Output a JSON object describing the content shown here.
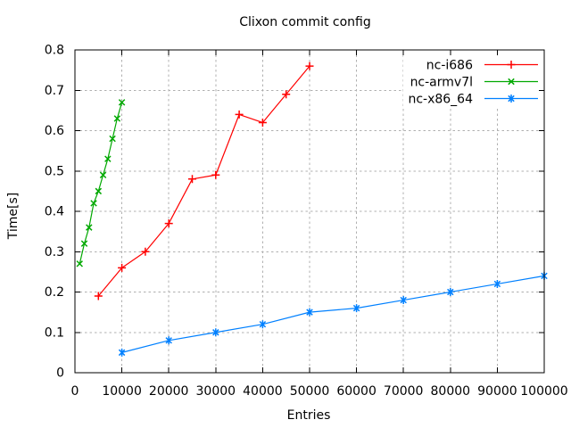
{
  "window": {
    "background": "#ffffff"
  },
  "style": {
    "grid_color": "#b0b0b0",
    "axis_color": "#000000",
    "text_color": "#000000",
    "plot_background": "#ffffff"
  },
  "chart_data": {
    "type": "line",
    "title": "Clixon commit config",
    "xlabel": "Entries",
    "ylabel": "Time[s]",
    "xlim": [
      0,
      100000
    ],
    "ylim": [
      0,
      0.8
    ],
    "grid": true,
    "legend_position": "top-right-inside",
    "x_ticks": {
      "values": [
        0,
        10000,
        20000,
        30000,
        40000,
        50000,
        60000,
        70000,
        80000,
        90000,
        100000
      ],
      "labels": [
        "0",
        "10000",
        "20000",
        "30000",
        "40000",
        "50000",
        "60000",
        "70000",
        "80000",
        "90000",
        "100000"
      ]
    },
    "y_ticks": {
      "values": [
        0,
        0.1,
        0.2,
        0.3,
        0.4,
        0.5,
        0.6,
        0.7,
        0.8
      ],
      "labels": [
        "0",
        "0.1",
        "0.2",
        "0.3",
        "0.4",
        "0.5",
        "0.6",
        "0.7",
        "0.8"
      ]
    },
    "series": [
      {
        "name": "nc-i686",
        "color": "#ff0000",
        "marker": "plus",
        "x": [
          5000,
          10000,
          15000,
          20000,
          25000,
          30000,
          35000,
          40000,
          45000,
          50000
        ],
        "y": [
          0.19,
          0.26,
          0.3,
          0.37,
          0.48,
          0.49,
          0.64,
          0.62,
          0.69,
          0.76
        ]
      },
      {
        "name": "nc-armv7l",
        "color": "#00a800",
        "marker": "cross",
        "x": [
          1000,
          2000,
          3000,
          4000,
          5000,
          6000,
          7000,
          8000,
          9000,
          10000
        ],
        "y": [
          0.27,
          0.32,
          0.36,
          0.42,
          0.45,
          0.49,
          0.53,
          0.58,
          0.63,
          0.67
        ]
      },
      {
        "name": "nc-x86_64",
        "color": "#0080ff",
        "marker": "asterisk",
        "x": [
          10000,
          20000,
          30000,
          40000,
          50000,
          60000,
          70000,
          80000,
          90000,
          100000
        ],
        "y": [
          0.05,
          0.08,
          0.1,
          0.12,
          0.15,
          0.16,
          0.18,
          0.2,
          0.22,
          0.24
        ]
      }
    ]
  }
}
